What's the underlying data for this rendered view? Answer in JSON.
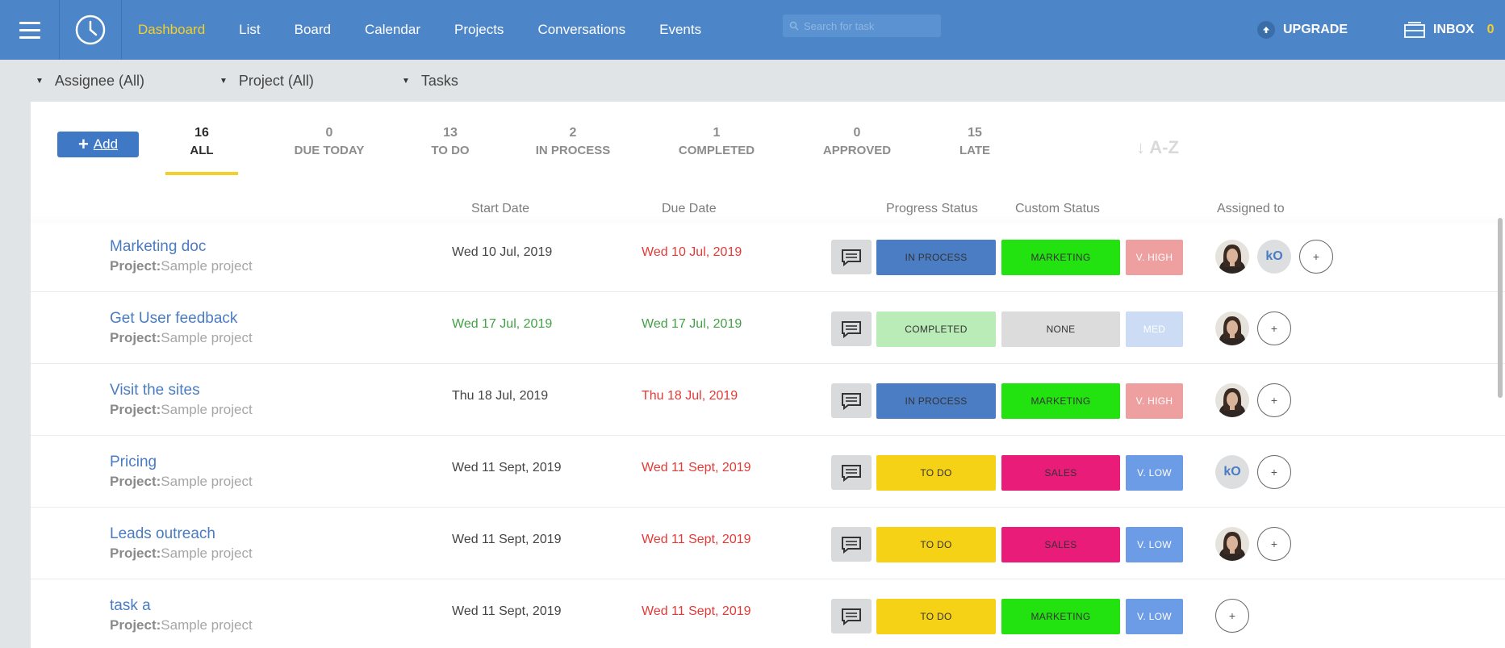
{
  "nav": {
    "items": [
      "Dashboard",
      "List",
      "Board",
      "Calendar",
      "Projects",
      "Conversations",
      "Events"
    ],
    "active": "Dashboard",
    "search_placeholder": "Search for task",
    "upgrade_label": "UPGRADE",
    "inbox_label": "INBOX",
    "inbox_count": "0"
  },
  "filters": {
    "assignee": "Assignee (All)",
    "project": "Project (All)",
    "tasks": "Tasks"
  },
  "toolbar": {
    "add_label": "Add",
    "sort_label": "A-Z",
    "tabs": [
      {
        "num": "16",
        "label": "ALL"
      },
      {
        "num": "0",
        "label": "DUE TODAY"
      },
      {
        "num": "13",
        "label": "TO DO"
      },
      {
        "num": "2",
        "label": "IN PROCESS"
      },
      {
        "num": "1",
        "label": "COMPLETED"
      },
      {
        "num": "0",
        "label": "APPROVED"
      },
      {
        "num": "15",
        "label": "LATE"
      }
    ]
  },
  "columns": {
    "start": "Start Date",
    "due": "Due Date",
    "progress": "Progress Status",
    "custom": "Custom Status",
    "assigned": "Assigned to"
  },
  "colors": {
    "in_process": "#4a7dc3",
    "completed": "#b9ecb6",
    "to_do": "#f5d215",
    "marketing": "#22e20f",
    "none": "#dcdcdc",
    "sales": "#e91c79",
    "v_high": "#eea0a0",
    "med": "#ccdcf4",
    "v_low": "#6d9ce6"
  },
  "project_label": "Project:",
  "tasks": [
    {
      "title": "Marketing doc",
      "project": "Sample project",
      "start": "Wed 10 Jul, 2019",
      "due": "Wed 10 Jul, 2019",
      "start_color": "normal",
      "due_color": "red",
      "progress": "IN PROCESS",
      "custom": "MARKETING",
      "priority": "V. HIGH"
    },
    {
      "title": "Get User feedback",
      "project": "Sample project",
      "start": "Wed 17 Jul, 2019",
      "due": "Wed 17 Jul, 2019",
      "start_color": "green",
      "due_color": "green",
      "progress": "COMPLETED",
      "custom": "NONE",
      "priority": "MED"
    },
    {
      "title": "Visit the sites",
      "project": "Sample project",
      "start": "Thu 18 Jul, 2019",
      "due": "Thu 18 Jul, 2019",
      "start_color": "normal",
      "due_color": "red",
      "progress": "IN PROCESS",
      "custom": "MARKETING",
      "priority": "V. HIGH"
    },
    {
      "title": "Pricing",
      "project": "Sample project",
      "start": "Wed 11 Sept, 2019",
      "due": "Wed 11 Sept, 2019",
      "start_color": "normal",
      "due_color": "red",
      "progress": "TO DO",
      "custom": "SALES",
      "priority": "V. LOW"
    },
    {
      "title": "Leads outreach",
      "project": "Sample project",
      "start": "Wed 11 Sept, 2019",
      "due": "Wed 11 Sept, 2019",
      "start_color": "normal",
      "due_color": "red",
      "progress": "TO DO",
      "custom": "SALES",
      "priority": "V. LOW"
    },
    {
      "title": "task a",
      "project": "Sample project",
      "start": "Wed 11 Sept, 2019",
      "due": "Wed 11 Sept, 2019",
      "start_color": "normal",
      "due_color": "red",
      "progress": "TO DO",
      "custom": "MARKETING",
      "priority": "V. LOW"
    }
  ],
  "assignees": {
    "initials": "kO",
    "plus": "+"
  }
}
